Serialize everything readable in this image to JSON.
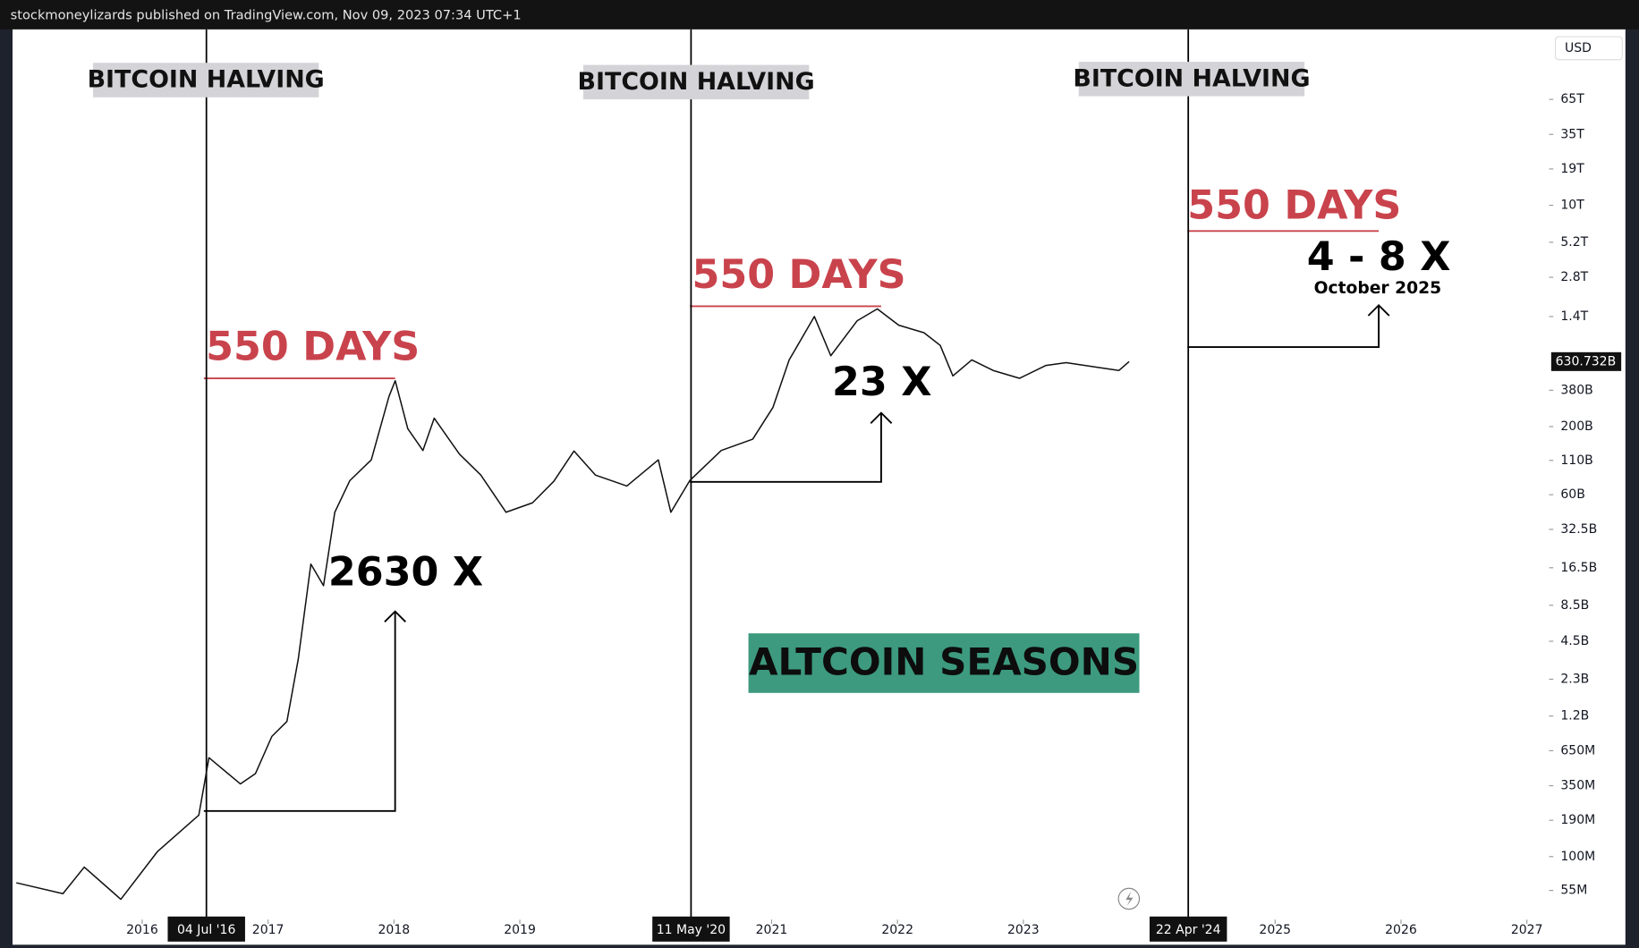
{
  "header": "stockmoneylizards published on TradingView.com, Nov 09, 2023 07:34 UTC+1",
  "chart_data": {
    "type": "line",
    "log_scale": true,
    "currency": "USD",
    "color": "#111111",
    "x": [
      2015.0,
      2015.37,
      2015.54,
      2015.83,
      2016.12,
      2016.45,
      2016.53,
      2016.78,
      2016.9,
      2017.03,
      2017.15,
      2017.24,
      2017.34,
      2017.44,
      2017.53,
      2017.65,
      2017.82,
      2017.96,
      2018.01,
      2018.11,
      2018.23,
      2018.32,
      2018.52,
      2018.69,
      2018.89,
      2019.1,
      2019.27,
      2019.43,
      2019.6,
      2019.85,
      2020.1,
      2020.2,
      2020.35,
      2020.6,
      2020.85,
      2021.01,
      2021.14,
      2021.34,
      2021.47,
      2021.68,
      2021.84,
      2022.01,
      2022.21,
      2022.34,
      2022.44,
      2022.59,
      2022.76,
      2022.97,
      2023.18,
      2023.34,
      2023.59,
      2023.76,
      2023.84
    ],
    "values": [
      63000000,
      52000000,
      83000000,
      47000000,
      109000000,
      208000000,
      574000000,
      361000000,
      434000000,
      838000000,
      1090000000,
      3300000000,
      17600000000,
      12000000000,
      44000000000,
      77000000000,
      111000000000,
      340000000000,
      450000000000,
      193000000000,
      131000000000,
      232000000000,
      123000000000,
      85000000000,
      44000000000,
      52000000000,
      76000000000,
      130000000000,
      85000000000,
      70000000000,
      111000000000,
      44000000000,
      77000000000,
      131000000000,
      160000000000,
      280000000000,
      650000000000,
      1400000000000,
      700000000000,
      1300000000000,
      1600000000000,
      1200000000000,
      1050000000000,
      840000000000,
      490000000000,
      650000000000,
      540000000000,
      470000000000,
      590000000000,
      620000000000,
      570000000000,
      540000000000,
      630732000000
    ],
    "last_price": {
      "value": 630732000000,
      "label": "630.732B"
    },
    "xlim": [
      2014.97,
      2027.16
    ],
    "xticks": [
      2016,
      2017,
      2018,
      2019,
      2021,
      2022,
      2023,
      2025,
      2026,
      2027
    ],
    "ylim": [
      32800000,
      224000000000000
    ],
    "yticks": [
      {
        "value": 55000000,
        "label": "55M"
      },
      {
        "value": 100000000,
        "label": "100M"
      },
      {
        "value": 190000000,
        "label": "190M"
      },
      {
        "value": 350000000,
        "label": "350M"
      },
      {
        "value": 650000000,
        "label": "650M"
      },
      {
        "value": 1200000000,
        "label": "1.2B"
      },
      {
        "value": 2300000000,
        "label": "2.3B"
      },
      {
        "value": 4500000000,
        "label": "4.5B"
      },
      {
        "value": 8500000000,
        "label": "8.5B"
      },
      {
        "value": 16500000000,
        "label": "16.5B"
      },
      {
        "value": 32500000000,
        "label": "32.5B"
      },
      {
        "value": 60000000000,
        "label": "60B"
      },
      {
        "value": 110000000000,
        "label": "110B"
      },
      {
        "value": 200000000000,
        "label": "200B"
      },
      {
        "value": 380000000000,
        "label": "380B"
      },
      {
        "value": 1400000000000,
        "label": "1.4T"
      },
      {
        "value": 2800000000000,
        "label": "2.8T"
      },
      {
        "value": 5200000000000,
        "label": "5.2T"
      },
      {
        "value": 10000000000000,
        "label": "10T"
      },
      {
        "value": 19000000000000,
        "label": "19T"
      },
      {
        "value": 35000000000000,
        "label": "35T"
      },
      {
        "value": 65000000000000,
        "label": "65T"
      }
    ],
    "markers": [
      {
        "x": 2016.51,
        "label": "04 Jul '16"
      },
      {
        "x": 2020.36,
        "label": "11 May '20"
      },
      {
        "x": 2024.31,
        "label": "22 Apr '24"
      }
    ],
    "annotations": {
      "halving_labels": [
        "BITCOIN HALVING",
        "BITCOIN HALVING",
        "BITCOIN HALVING"
      ],
      "days_labels": [
        "550 DAYS",
        "550 DAYS",
        "550 DAYS"
      ],
      "gains": [
        "2630 X",
        "23 X",
        "4 - 8 X"
      ],
      "target_date": "October 2025",
      "season": "ALTCOIN SEASONS"
    }
  }
}
